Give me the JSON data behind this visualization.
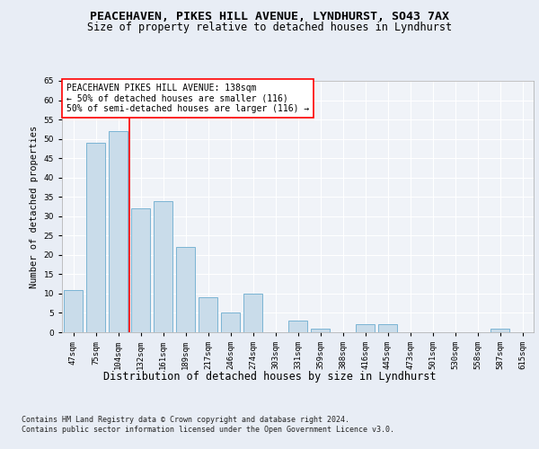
{
  "title1": "PEACEHAVEN, PIKES HILL AVENUE, LYNDHURST, SO43 7AX",
  "title2": "Size of property relative to detached houses in Lyndhurst",
  "xlabel": "Distribution of detached houses by size in Lyndhurst",
  "ylabel": "Number of detached properties",
  "categories": [
    "47sqm",
    "75sqm",
    "104sqm",
    "132sqm",
    "161sqm",
    "189sqm",
    "217sqm",
    "246sqm",
    "274sqm",
    "303sqm",
    "331sqm",
    "359sqm",
    "388sqm",
    "416sqm",
    "445sqm",
    "473sqm",
    "501sqm",
    "530sqm",
    "558sqm",
    "587sqm",
    "615sqm"
  ],
  "values": [
    11,
    49,
    52,
    32,
    34,
    22,
    9,
    5,
    10,
    0,
    3,
    1,
    0,
    2,
    2,
    0,
    0,
    0,
    0,
    1,
    0
  ],
  "bar_color": "#c9dcea",
  "bar_edge_color": "#7ab4d4",
  "vline_color": "red",
  "vline_index": 2.5,
  "annotation_text": "PEACEHAVEN PIKES HILL AVENUE: 138sqm\n← 50% of detached houses are smaller (116)\n50% of semi-detached houses are larger (116) →",
  "annotation_box_color": "white",
  "annotation_box_edge": "red",
  "ylim": [
    0,
    65
  ],
  "yticks": [
    0,
    5,
    10,
    15,
    20,
    25,
    30,
    35,
    40,
    45,
    50,
    55,
    60,
    65
  ],
  "bg_color": "#e8edf5",
  "plot_bg_color": "#f0f3f8",
  "footer1": "Contains HM Land Registry data © Crown copyright and database right 2024.",
  "footer2": "Contains public sector information licensed under the Open Government Licence v3.0.",
  "title1_fontsize": 9.5,
  "title2_fontsize": 8.5,
  "xlabel_fontsize": 8.5,
  "ylabel_fontsize": 7.5,
  "tick_fontsize": 6.5,
  "annotation_fontsize": 7,
  "footer_fontsize": 6
}
